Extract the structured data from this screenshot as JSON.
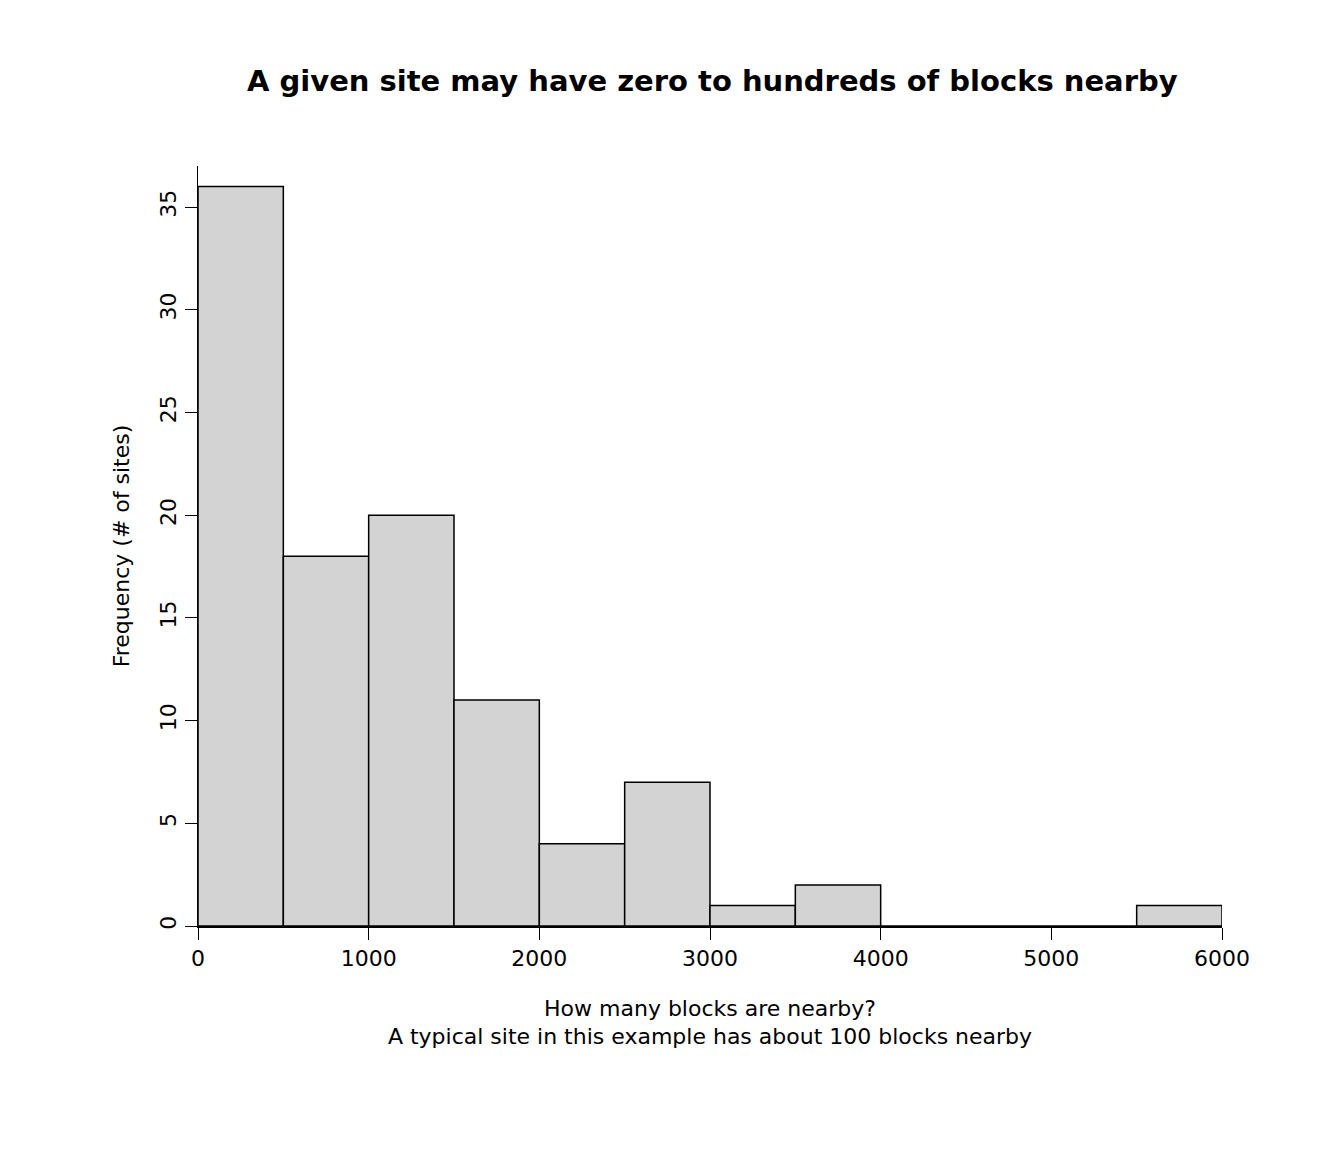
{
  "chart_data": {
    "type": "histogram",
    "title": "A given site may have zero to hundreds of blocks nearby",
    "xlabel": [
      "How many blocks are nearby?",
      "A typical site in this example has about 100 blocks nearby"
    ],
    "ylabel": "Frequency (# of sites)",
    "bins": [
      0,
      500,
      1000,
      1500,
      2000,
      2500,
      3000,
      3500,
      4000,
      4500,
      5000,
      5500,
      6000
    ],
    "values": [
      36,
      18,
      20,
      11,
      4,
      7,
      1,
      2,
      0,
      0,
      0,
      1
    ],
    "color": "#d3d3d3",
    "xlim": [
      0,
      6000
    ],
    "xticks": [
      0,
      1000,
      2000,
      3000,
      4000,
      5000,
      6000
    ],
    "ylim": [
      0,
      37
    ],
    "yticks": [
      0,
      5,
      10,
      15,
      20,
      25,
      30,
      35
    ],
    "grid": false
  }
}
